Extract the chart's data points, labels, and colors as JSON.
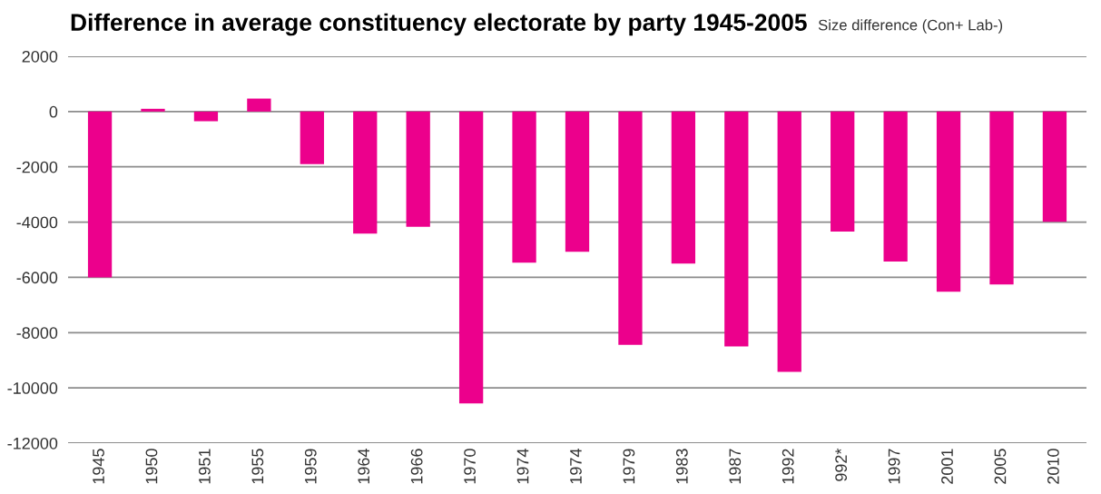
{
  "chart_data": {
    "type": "bar",
    "title": "Difference in average constituency electorate by party 1945-2005",
    "subtitle": "Size difference (Con+ Lab-)",
    "categories": [
      "1945",
      "1950",
      "1951",
      "1955",
      "1959",
      "1964",
      "1966",
      "1970",
      "1974",
      "1974",
      "1979",
      "1983",
      "1987",
      "1992",
      "992*",
      "1997",
      "2001",
      "2005",
      "2010"
    ],
    "values": [
      -6000,
      100,
      -350,
      470,
      -1900,
      -4420,
      -4170,
      -10560,
      -5470,
      -5070,
      -8440,
      -5500,
      -8500,
      -9420,
      -4340,
      -5430,
      -6520,
      -6260,
      -3990
    ],
    "color": "#ec008c",
    "ylim": [
      -12000,
      2000
    ],
    "yticks": [
      -12000,
      -10000,
      -8000,
      -6000,
      -4000,
      -2000,
      0,
      2000
    ],
    "grid": "y"
  }
}
